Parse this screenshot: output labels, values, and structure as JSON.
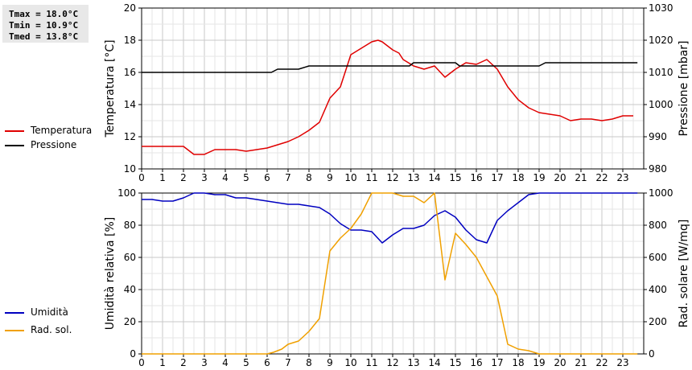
{
  "stats": {
    "tmax": "Tmax = 18.0°C",
    "tmin": "Tmin = 10.9°C",
    "tmed": "Tmed = 13.8°C"
  },
  "legend_top": [
    {
      "label": "Temperatura",
      "color": "#e00000"
    },
    {
      "label": "Pressione",
      "color": "#000000"
    }
  ],
  "legend_bottom": [
    {
      "label": "Umidità",
      "color": "#0000c0"
    },
    {
      "label": "Rad. sol.",
      "color": "#f0a000"
    }
  ],
  "chart_data": [
    {
      "type": "line",
      "xlim": [
        0,
        24
      ],
      "x_ticks": [
        0,
        1,
        2,
        3,
        4,
        5,
        6,
        7,
        8,
        9,
        10,
        11,
        12,
        13,
        14,
        15,
        16,
        17,
        18,
        19,
        20,
        21,
        22,
        23
      ],
      "y_left_label": "Temperatura [°C]",
      "y_left_lim": [
        10,
        20
      ],
      "y_left_ticks": [
        10,
        12,
        14,
        16,
        18,
        20
      ],
      "y_right_label": "Pressione [mbar]",
      "y_right_lim": [
        980,
        1030
      ],
      "y_right_ticks": [
        980,
        990,
        1000,
        1010,
        1020,
        1030
      ],
      "grid": true,
      "series": [
        {
          "name": "Temperatura",
          "axis": "left",
          "color": "#e00000",
          "x": [
            0,
            0.5,
            1,
            1.5,
            2,
            2.5,
            3,
            3.5,
            4,
            4.5,
            5,
            5.5,
            6,
            6.5,
            7,
            7.5,
            8,
            8.5,
            9,
            9.5,
            10,
            10.5,
            11,
            11.3,
            11.5,
            12,
            12.3,
            12.5,
            13,
            13.5,
            14,
            14.5,
            15,
            15.5,
            16,
            16.5,
            17,
            17.5,
            18,
            18.5,
            19,
            19.5,
            20,
            20.5,
            21,
            21.5,
            22,
            22.5,
            23,
            23.5
          ],
          "y": [
            11.4,
            11.4,
            11.4,
            11.4,
            11.4,
            10.9,
            10.9,
            11.2,
            11.2,
            11.2,
            11.1,
            11.2,
            11.3,
            11.5,
            11.7,
            12.0,
            12.4,
            12.9,
            14.4,
            15.1,
            17.1,
            17.5,
            17.9,
            18.0,
            17.9,
            17.4,
            17.2,
            16.8,
            16.4,
            16.2,
            16.4,
            15.7,
            16.2,
            16.6,
            16.5,
            16.8,
            16.2,
            15.1,
            14.3,
            13.8,
            13.5,
            13.4,
            13.3,
            13.0,
            13.1,
            13.1,
            13.0,
            13.1,
            13.3,
            13.3
          ]
        },
        {
          "name": "Pressione",
          "axis": "right",
          "color": "#000000",
          "x": [
            0,
            6.2,
            6.5,
            7.5,
            8,
            12.8,
            13,
            15,
            15.2,
            19,
            19.3,
            23.7
          ],
          "y": [
            1010,
            1010,
            1011,
            1011,
            1012,
            1012,
            1013,
            1013,
            1012,
            1012,
            1013,
            1013
          ]
        }
      ]
    },
    {
      "type": "line",
      "xlim": [
        0,
        24
      ],
      "x_ticks": [
        0,
        1,
        2,
        3,
        4,
        5,
        6,
        7,
        8,
        9,
        10,
        11,
        12,
        13,
        14,
        15,
        16,
        17,
        18,
        19,
        20,
        21,
        22,
        23
      ],
      "y_left_label": "Umidità relativa [%]",
      "y_left_lim": [
        0,
        100
      ],
      "y_left_ticks": [
        0,
        20,
        40,
        60,
        80,
        100
      ],
      "y_right_label": "Rad. solare [W/mq]",
      "y_right_lim": [
        0,
        1000
      ],
      "y_right_ticks": [
        0,
        200,
        400,
        600,
        800,
        1000
      ],
      "grid": true,
      "series": [
        {
          "name": "Umidità",
          "axis": "left",
          "color": "#0000c0",
          "x": [
            0,
            0.5,
            1,
            1.5,
            2,
            2.5,
            3,
            3.5,
            4,
            4.5,
            5,
            5.5,
            6,
            6.5,
            7,
            7.5,
            8,
            8.5,
            9,
            9.5,
            10,
            10.5,
            11,
            11.5,
            12,
            12.5,
            13,
            13.5,
            14,
            14.5,
            15,
            15.5,
            16,
            16.5,
            17,
            17.5,
            18,
            18.5,
            19,
            19.5,
            20,
            21,
            22,
            23,
            23.7
          ],
          "y": [
            96,
            96,
            95,
            95,
            97,
            100,
            100,
            99,
            99,
            97,
            97,
            96,
            95,
            94,
            93,
            93,
            92,
            91,
            87,
            81,
            77,
            77,
            76,
            69,
            74,
            78,
            78,
            80,
            86,
            89,
            85,
            77,
            71,
            69,
            83,
            89,
            94,
            99,
            100,
            100,
            100,
            100,
            100,
            100,
            100
          ]
        },
        {
          "name": "Rad. sol.",
          "axis": "right",
          "color": "#f0a000",
          "x": [
            0,
            1,
            2,
            3,
            4,
            5,
            6,
            6.3,
            6.7,
            7,
            7.5,
            8,
            8.5,
            9,
            9.5,
            10,
            10.5,
            11,
            11.5,
            12,
            12.5,
            13,
            13.5,
            14,
            14.5,
            15,
            15.5,
            16,
            16.5,
            17,
            17.5,
            18,
            18.5,
            19,
            20,
            21,
            22,
            23,
            23.7
          ],
          "y": [
            0,
            0,
            0,
            0,
            0,
            0,
            0,
            10,
            30,
            60,
            80,
            140,
            220,
            640,
            720,
            780,
            870,
            1000,
            1020,
            1000,
            980,
            980,
            940,
            1030,
            460,
            750,
            680,
            600,
            480,
            360,
            60,
            30,
            20,
            0,
            0,
            0,
            0,
            0,
            0
          ]
        }
      ]
    }
  ]
}
